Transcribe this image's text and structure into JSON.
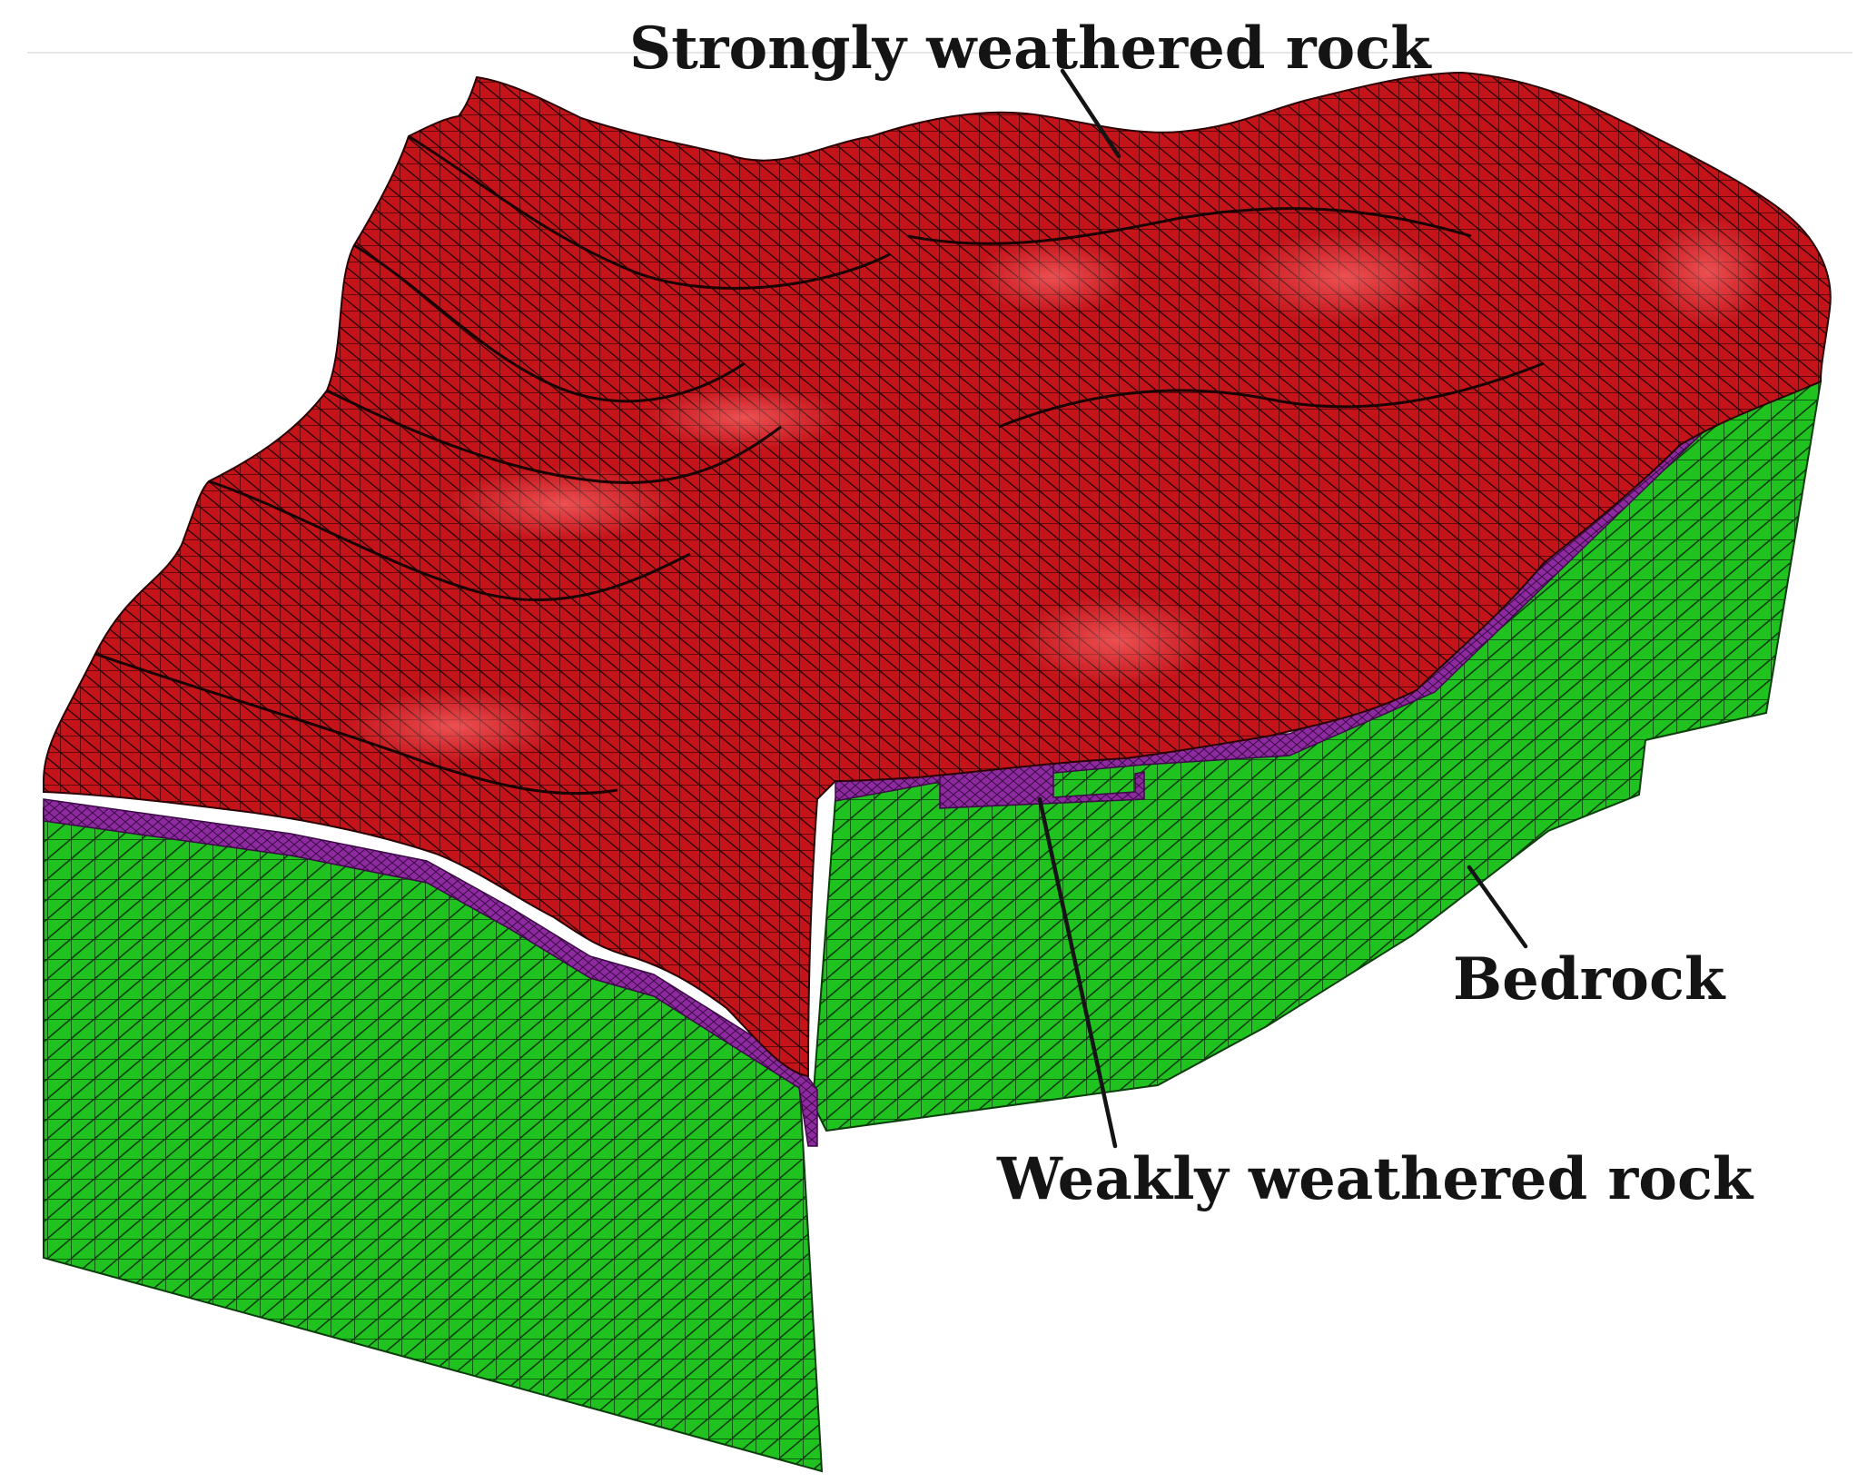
{
  "labels": {
    "strongly_weathered": "Strongly weathered rock",
    "weakly_weathered": "Weakly weathered rock",
    "bedrock": "Bedrock"
  },
  "layers": [
    {
      "name": "Strongly weathered rock",
      "color": "#d0161b"
    },
    {
      "name": "Weakly weathered rock",
      "color": "#8e2aa0"
    },
    {
      "name": "Bedrock",
      "color": "#1fc21f"
    }
  ]
}
